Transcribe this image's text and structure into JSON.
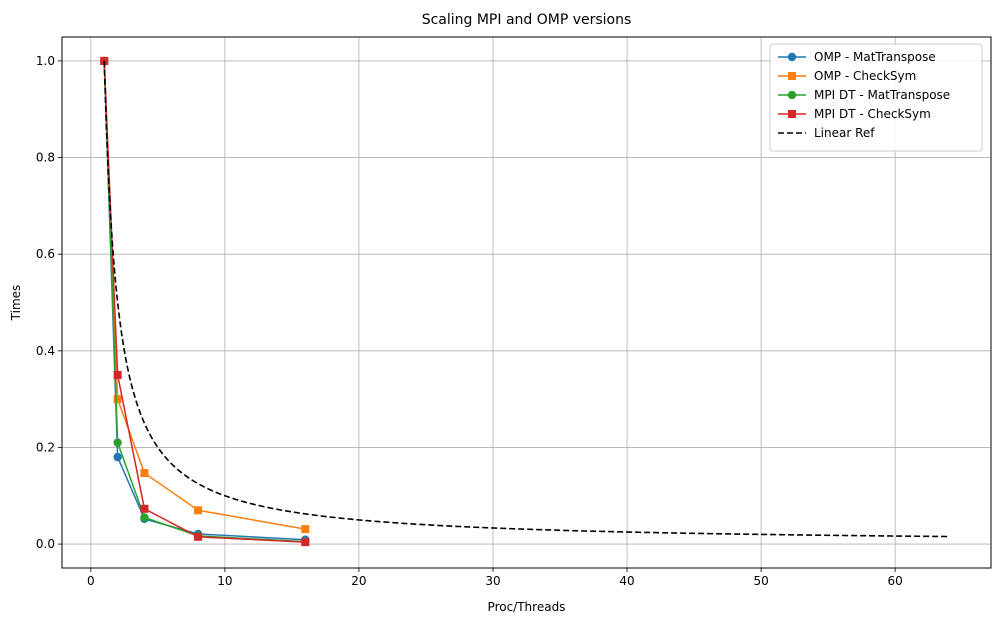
{
  "chart_data": {
    "type": "line",
    "title": "Scaling MPI and OMP versions",
    "xlabel": "Proc/Threads",
    "ylabel": "Times",
    "xlim": [
      -2.15,
      67.15
    ],
    "ylim": [
      -0.0495,
      1.0495
    ],
    "xticks": [
      0,
      10,
      20,
      30,
      40,
      50,
      60
    ],
    "yticks": [
      0.0,
      0.2,
      0.4,
      0.6,
      0.8,
      1.0
    ],
    "xtick_labels": [
      "0",
      "10",
      "20",
      "30",
      "40",
      "50",
      "60"
    ],
    "ytick_labels": [
      "0.0",
      "0.2",
      "0.4",
      "0.6",
      "0.8",
      "1.0"
    ],
    "grid": true,
    "legend_position": "top-right",
    "series": [
      {
        "name": "OMP - MatTranspose",
        "color": "#1f77b4",
        "marker": "circle",
        "linestyle": "solid",
        "x": [
          1,
          2,
          4,
          8,
          16
        ],
        "y": [
          1.0,
          0.18,
          0.052,
          0.021,
          0.009
        ]
      },
      {
        "name": "OMP - CheckSym",
        "color": "#ff7f0e",
        "marker": "square",
        "linestyle": "solid",
        "x": [
          1,
          2,
          4,
          8,
          16
        ],
        "y": [
          1.0,
          0.3,
          0.147,
          0.07,
          0.031
        ]
      },
      {
        "name": "MPI DT - MatTranspose",
        "color": "#2ca02c",
        "marker": "circle",
        "linestyle": "solid",
        "x": [
          1,
          2,
          4,
          8,
          16
        ],
        "y": [
          1.0,
          0.21,
          0.055,
          0.017,
          0.005
        ]
      },
      {
        "name": "MPI DT - CheckSym",
        "color": "#d62728",
        "marker": "square",
        "linestyle": "solid",
        "x": [
          1,
          2,
          4,
          8,
          16
        ],
        "y": [
          1.0,
          0.35,
          0.073,
          0.015,
          0.004
        ]
      },
      {
        "name": "Linear Ref",
        "color": "#000000",
        "marker": "none",
        "linestyle": "dashed",
        "function": "1/x",
        "x_range": [
          1,
          64
        ]
      }
    ]
  }
}
